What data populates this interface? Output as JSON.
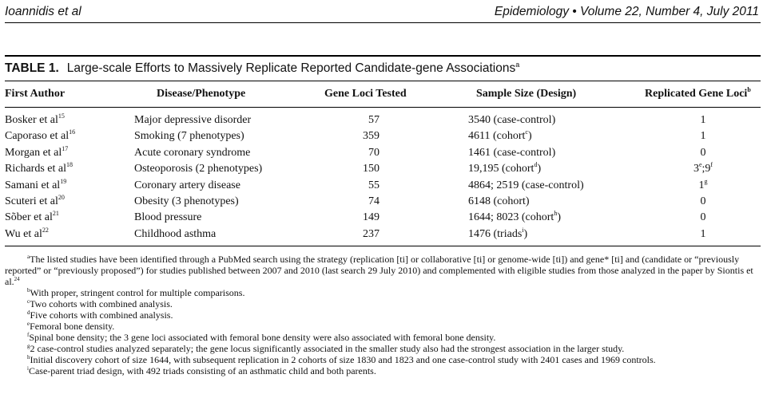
{
  "running_head": {
    "left": "Ioannidis et al",
    "right": "Epidemiology • Volume 22, Number 4, July 2011"
  },
  "table": {
    "label": "TABLE 1.",
    "title": "Large-scale Efforts to Massively Replicate Reported Candidate-gene Associations",
    "title_note": "a",
    "columns": {
      "author": "First Author",
      "disease": "Disease/Phenotype",
      "loci": "Gene Loci Tested",
      "sample": "Sample Size (Design)",
      "replicated": "Replicated Gene Loci",
      "replicated_note": "b"
    },
    "rows": [
      {
        "author": "Bosker et al",
        "ref": "15",
        "disease": "Major depressive disorder",
        "loci": "57",
        "sample": "3540 (case-control)",
        "sample_note": "",
        "sample_end": "",
        "replicated": "1",
        "rep_note": "",
        "rep_mid": "",
        "rep_note2": ""
      },
      {
        "author": "Caporaso et al",
        "ref": "16",
        "disease": "Smoking (7 phenotypes)",
        "loci": "359",
        "sample": "4611 (cohort",
        "sample_note": "c",
        "sample_end": ")",
        "replicated": "1",
        "rep_note": "",
        "rep_mid": "",
        "rep_note2": ""
      },
      {
        "author": "Morgan et al",
        "ref": "17",
        "disease": "Acute coronary syndrome",
        "loci": "70",
        "sample": "1461 (case-control)",
        "sample_note": "",
        "sample_end": "",
        "replicated": "0",
        "rep_note": "",
        "rep_mid": "",
        "rep_note2": ""
      },
      {
        "author": "Richards et al",
        "ref": "18",
        "disease": "Osteoporosis (2 phenotypes)",
        "loci": "150",
        "sample": "19,195 (cohort",
        "sample_note": "d",
        "sample_end": ")",
        "replicated": "3",
        "rep_note": "e",
        "rep_mid": ";9",
        "rep_note2": "f"
      },
      {
        "author": "Samani et al",
        "ref": "19",
        "disease": "Coronary artery disease",
        "loci": "55",
        "sample": "4864; 2519 (case-control)",
        "sample_note": "",
        "sample_end": "",
        "replicated": "1",
        "rep_note": "g",
        "rep_mid": "",
        "rep_note2": ""
      },
      {
        "author": "Scuteri et al",
        "ref": "20",
        "disease": "Obesity (3 phenotypes)",
        "loci": "74",
        "sample": "6148 (cohort)",
        "sample_note": "",
        "sample_end": "",
        "replicated": "0",
        "rep_note": "",
        "rep_mid": "",
        "rep_note2": ""
      },
      {
        "author": "Sõber et al",
        "ref": "21",
        "disease": "Blood pressure",
        "loci": "149",
        "sample": "1644; 8023 (cohort",
        "sample_note": "h",
        "sample_end": ")",
        "replicated": "0",
        "rep_note": "",
        "rep_mid": "",
        "rep_note2": ""
      },
      {
        "author": "Wu et al",
        "ref": "22",
        "disease": "Childhood asthma",
        "loci": "237",
        "sample": "1476 (triads",
        "sample_note": "i",
        "sample_end": ")",
        "replicated": "1",
        "rep_note": "",
        "rep_mid": "",
        "rep_note2": ""
      }
    ],
    "footnotes": [
      {
        "mark": "a",
        "text": "The listed studies have been identified through a PubMed search using the strategy (replication [ti] or collaborative [ti] or genome-wide [ti]) and gene* [ti] and (candidate or “previously reported” or “previously proposed”) for studies published between 2007 and 2010 (last search 29 July 2010) and complemented with eligible studies from those analyzed in the paper by Siontis et al.",
        "end_mark": "24"
      },
      {
        "mark": "b",
        "text": "With proper, stringent control for multiple comparisons."
      },
      {
        "mark": "c",
        "text": "Two cohorts with combined analysis."
      },
      {
        "mark": "d",
        "text": "Five cohorts with combined analysis."
      },
      {
        "mark": "e",
        "text": "Femoral bone density."
      },
      {
        "mark": "f",
        "text": "Spinal bone density; the 3 gene loci associated with femoral bone density were also associated with femoral bone density."
      },
      {
        "mark": "g",
        "text": "2 case-control studies analyzed separately; the gene locus significantly associated in the smaller study also had the strongest association in the larger study."
      },
      {
        "mark": "h",
        "text": "Initial discovery cohort of size 1644, with subsequent replication in 2 cohorts of size 1830 and 1823 and one case-control study with 2401 cases and 1969 controls."
      },
      {
        "mark": "i",
        "text": "Case-parent triad design, with 492 triads consisting of an asthmatic child and both parents."
      }
    ]
  }
}
